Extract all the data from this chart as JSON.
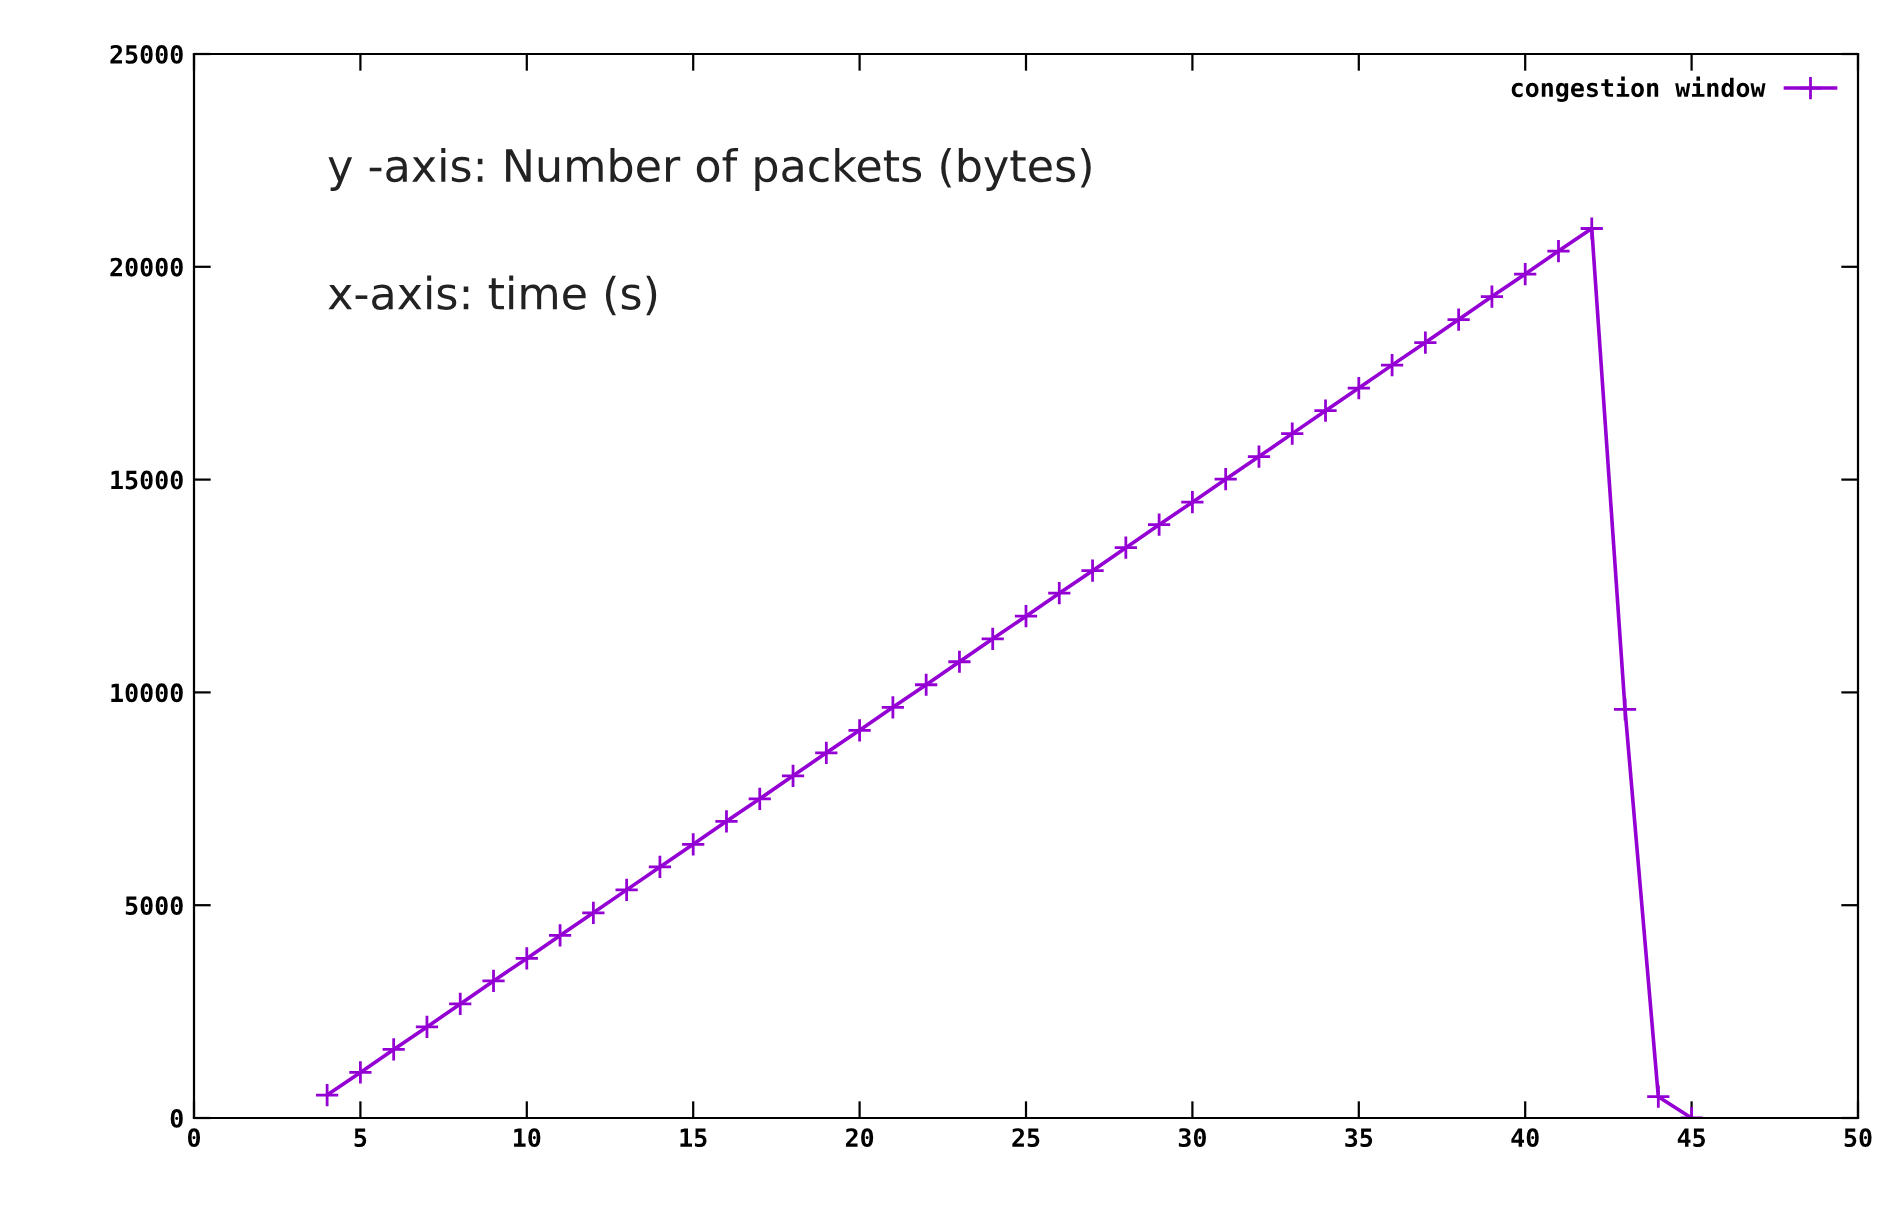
{
  "chart_data": {
    "type": "line",
    "x": [
      4,
      5,
      6,
      7,
      8,
      9,
      10,
      11,
      12,
      13,
      14,
      15,
      16,
      17,
      18,
      19,
      20,
      21,
      22,
      23,
      24,
      25,
      26,
      27,
      28,
      29,
      30,
      31,
      32,
      33,
      34,
      35,
      36,
      37,
      38,
      39,
      40,
      41,
      42,
      43,
      44,
      45
    ],
    "series": [
      {
        "name": "congestion window",
        "color": "#9400d3",
        "values": [
          540,
          1070,
          1610,
          2140,
          2680,
          3220,
          3750,
          4290,
          4820,
          5360,
          5900,
          6430,
          6970,
          7500,
          8040,
          8580,
          9110,
          9650,
          10180,
          10720,
          11260,
          11790,
          12330,
          12860,
          13400,
          13940,
          14470,
          15010,
          15540,
          16080,
          16620,
          17150,
          17690,
          18220,
          18760,
          19300,
          19830,
          20370,
          20900,
          9600,
          500,
          0
        ]
      }
    ],
    "xlim": [
      0,
      50
    ],
    "xticks": [
      0,
      5,
      10,
      15,
      20,
      25,
      30,
      35,
      40,
      45,
      50
    ],
    "ylim": [
      0,
      25000
    ],
    "yticks": [
      0,
      5000,
      10000,
      15000,
      20000,
      25000
    ],
    "marker": "cross",
    "line_style": "solid",
    "grid": false,
    "legend": "top right",
    "annotations": [
      "y -axis: Number of packets (bytes)",
      "x-axis: time (s)"
    ]
  }
}
